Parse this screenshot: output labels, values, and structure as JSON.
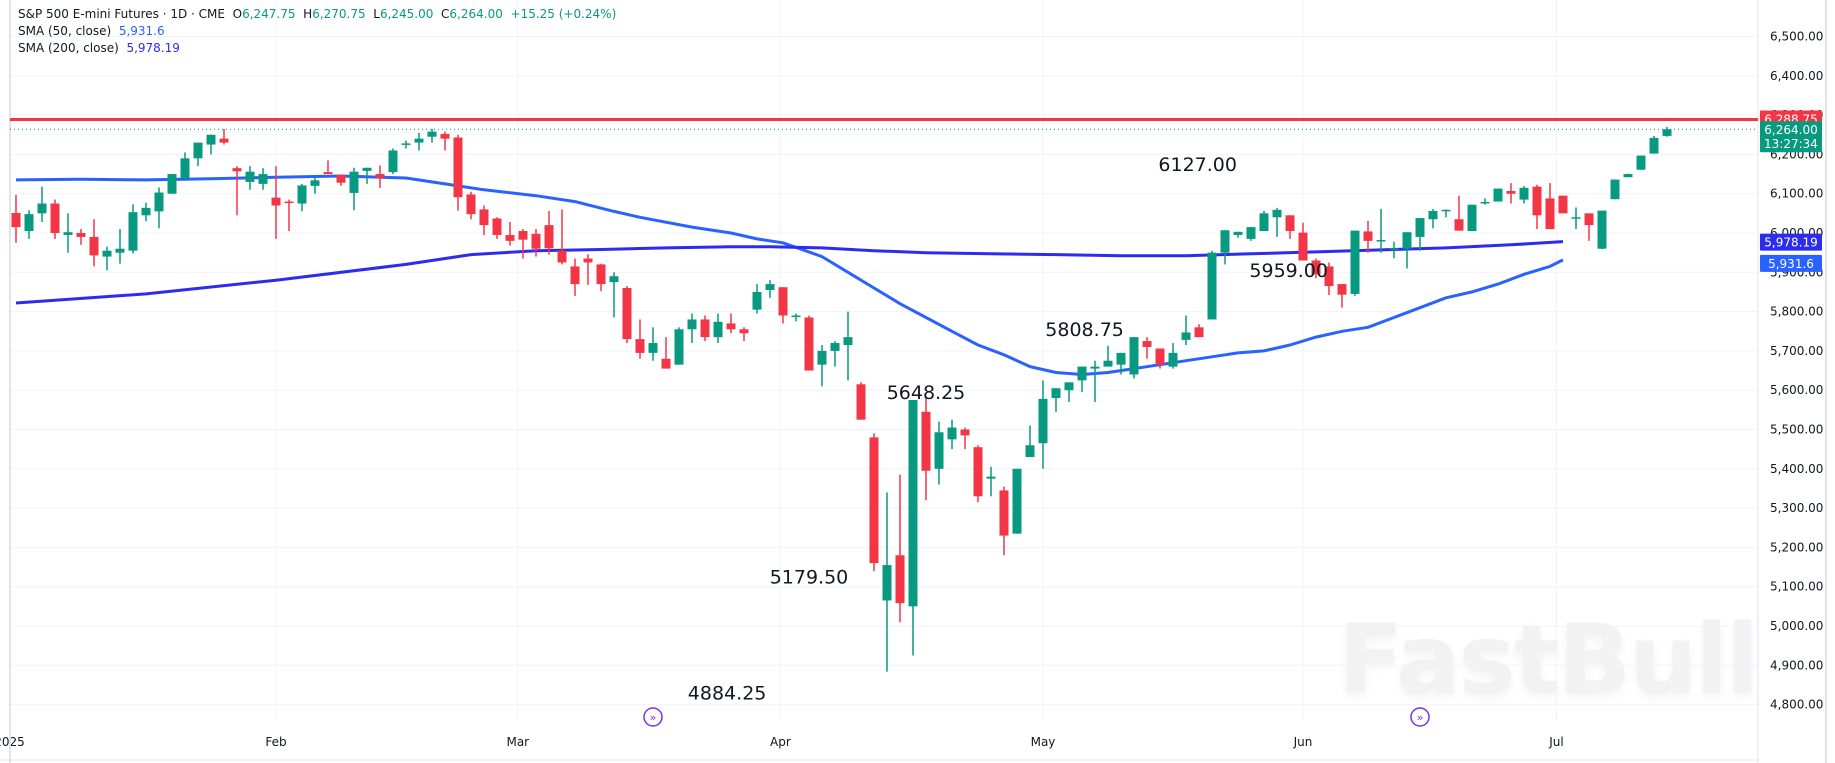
{
  "legend": {
    "symbol": "S&P 500 E-mini Futures · 1D · CME",
    "open_label": "O",
    "open": "6,247.75",
    "high_label": "H",
    "high": "6,270.75",
    "low_label": "L",
    "low": "6,245.00",
    "close_label": "C",
    "close": "6,264.00",
    "change": "+15.25 (+0.24%)",
    "sma50_label": "SMA (50, close)",
    "sma50_value": "5,931.6",
    "sma200_label": "SMA (200, close)",
    "sma200_value": "5,978.19"
  },
  "watermark": "FastBull",
  "colors": {
    "up": "#089981",
    "down": "#f23645",
    "sma50": "#2962ff",
    "sma200": "#2c2cf0",
    "resistance": "#f23645",
    "grid": "#f0f3fa",
    "text": "#131722",
    "event": "#7b2ff7"
  },
  "price_tags": {
    "resistance": "6,288.75",
    "last_price": "6,264.00",
    "countdown": "13:27:34",
    "sma200": "5,978.19",
    "sma50": "5,931.6"
  },
  "chart_data": {
    "type": "candlestick",
    "title": "S&P 500 E-mini Futures · 1D · CME",
    "xlabel": "",
    "ylabel": "",
    "ylim": [
      4750,
      6560
    ],
    "grid": true,
    "y_ticks": [
      "6,500.00",
      "6,400.00",
      "6,300.00",
      "6,200.00",
      "6,100.00",
      "6,000.00",
      "5,900.00",
      "5,800.00",
      "5,700.00",
      "5,600.00",
      "5,500.00",
      "5,400.00",
      "5,300.00",
      "5,200.00",
      "5,100.00",
      "5,000.00",
      "4,900.00",
      "4,800.00"
    ],
    "y_tick_values": [
      6500,
      6400,
      6300,
      6200,
      6100,
      6000,
      5900,
      5800,
      5700,
      5600,
      5500,
      5400,
      5300,
      5200,
      5100,
      5000,
      4900,
      4800
    ],
    "x_ticks": [
      {
        "label": "2025",
        "index": -0.5
      },
      {
        "label": "Feb",
        "index": 20
      },
      {
        "label": "Mar",
        "index": 38.6
      },
      {
        "label": "Apr",
        "index": 58.8
      },
      {
        "label": "May",
        "index": 79
      },
      {
        "label": "Jun",
        "index": 99
      },
      {
        "label": "Jul",
        "index": 118.5
      }
    ],
    "horizontal_lines": [
      {
        "name": "resistance",
        "value": 6288.75
      }
    ],
    "annotations": [
      {
        "text": "4884.25",
        "index": 54.7,
        "value": 4884.25,
        "pos": "below"
      },
      {
        "text": "5179.50",
        "index": 61,
        "value": 5179.5,
        "pos": "below"
      },
      {
        "text": "5648.25",
        "index": 70,
        "value": 5648.25,
        "pos": "below"
      },
      {
        "text": "5808.75",
        "index": 82.2,
        "value": 5808.75,
        "pos": "below"
      },
      {
        "text": "6127.00",
        "index": 90.9,
        "value": 6127.0,
        "pos": "above"
      },
      {
        "text": "5959.00",
        "index": 97.9,
        "value": 5959.0,
        "pos": "below"
      }
    ],
    "events": [
      {
        "index": 49
      },
      {
        "index": 108
      }
    ],
    "series": [
      {
        "name": "SMA (50, close)",
        "type": "line",
        "points": [
          [
            0,
            6135
          ],
          [
            5,
            6137
          ],
          [
            10,
            6135
          ],
          [
            15,
            6138
          ],
          [
            20,
            6142
          ],
          [
            25,
            6145
          ],
          [
            30,
            6140
          ],
          [
            33,
            6125
          ],
          [
            36,
            6110
          ],
          [
            40,
            6095
          ],
          [
            43,
            6080
          ],
          [
            46,
            6055
          ],
          [
            48,
            6040
          ],
          [
            52,
            6015
          ],
          [
            55,
            6000
          ],
          [
            57,
            5985
          ],
          [
            59,
            5975
          ],
          [
            62,
            5940
          ],
          [
            64,
            5900
          ],
          [
            66,
            5860
          ],
          [
            68,
            5820
          ],
          [
            70,
            5785
          ],
          [
            72,
            5750
          ],
          [
            74,
            5715
          ],
          [
            76,
            5690
          ],
          [
            78,
            5660
          ],
          [
            80,
            5645
          ],
          [
            82,
            5640
          ],
          [
            84,
            5645
          ],
          [
            86,
            5655
          ],
          [
            88,
            5665
          ],
          [
            90,
            5675
          ],
          [
            92,
            5685
          ],
          [
            94,
            5695
          ],
          [
            96,
            5700
          ],
          [
            98,
            5715
          ],
          [
            100,
            5735
          ],
          [
            102,
            5750
          ],
          [
            104,
            5760
          ],
          [
            106,
            5785
          ],
          [
            108,
            5810
          ],
          [
            110,
            5835
          ],
          [
            112,
            5850
          ],
          [
            114,
            5870
          ],
          [
            116,
            5895
          ],
          [
            118,
            5915
          ],
          [
            119,
            5931.6
          ]
        ]
      },
      {
        "name": "SMA (200, close)",
        "type": "line",
        "points": [
          [
            0,
            5822
          ],
          [
            10,
            5845
          ],
          [
            20,
            5880
          ],
          [
            30,
            5920
          ],
          [
            35,
            5945
          ],
          [
            40,
            5955
          ],
          [
            45,
            5958
          ],
          [
            50,
            5962
          ],
          [
            55,
            5965
          ],
          [
            58,
            5965
          ],
          [
            62,
            5962
          ],
          [
            66,
            5955
          ],
          [
            70,
            5950
          ],
          [
            75,
            5947
          ],
          [
            80,
            5945
          ],
          [
            85,
            5942
          ],
          [
            90,
            5942
          ],
          [
            95,
            5947
          ],
          [
            100,
            5952
          ],
          [
            105,
            5957
          ],
          [
            110,
            5962
          ],
          [
            115,
            5970
          ],
          [
            119,
            5978.19
          ]
        ]
      }
    ],
    "candles": [
      [
        6051,
        6097,
        5975,
        6015
      ],
      [
        6005,
        6058,
        5985,
        6048
      ],
      [
        6050,
        6118,
        6028,
        6075
      ],
      [
        6075,
        6085,
        5985,
        6000
      ],
      [
        5995,
        6050,
        5950,
        6002
      ],
      [
        6000,
        6010,
        5970,
        5990
      ],
      [
        5990,
        6035,
        5915,
        5943
      ],
      [
        5940,
        5965,
        5905,
        5955
      ],
      [
        5950,
        6010,
        5922,
        5960
      ],
      [
        5955,
        6073,
        5948,
        6053
      ],
      [
        6045,
        6077,
        6030,
        6064
      ],
      [
        6055,
        6116,
        6012,
        6103
      ],
      [
        6100,
        6145,
        6130,
        6150
      ],
      [
        6140,
        6205,
        6133,
        6190
      ],
      [
        6190,
        6215,
        6170,
        6230
      ],
      [
        6225,
        6240,
        6200,
        6250
      ],
      [
        6240,
        6265,
        6225,
        6230
      ],
      [
        6165,
        6170,
        6045,
        6157
      ],
      [
        6130,
        6170,
        6110,
        6156
      ],
      [
        6125,
        6165,
        6110,
        6150
      ],
      [
        6090,
        6170,
        5985,
        6070
      ],
      [
        6080,
        6085,
        6005,
        6077
      ],
      [
        6075,
        6125,
        6055,
        6121
      ],
      [
        6120,
        6145,
        6100,
        6134
      ],
      [
        6155,
        6185,
        6155,
        6150
      ],
      [
        6148,
        6140,
        6120,
        6128
      ],
      [
        6102,
        6166,
        6058,
        6156
      ],
      [
        6158,
        6165,
        6125,
        6166
      ],
      [
        6150,
        6172,
        6115,
        6140
      ],
      [
        6155,
        6215,
        6150,
        6210
      ],
      [
        6225,
        6235,
        6215,
        6228
      ],
      [
        6230,
        6255,
        6210,
        6240
      ],
      [
        6245,
        6265,
        6230,
        6258
      ],
      [
        6252,
        6258,
        6210,
        6240
      ],
      [
        6243,
        6250,
        6057,
        6091
      ],
      [
        6098,
        6105,
        6035,
        6048
      ],
      [
        6060,
        6070,
        5995,
        6020
      ],
      [
        6037,
        6040,
        5985,
        5995
      ],
      [
        5995,
        6028,
        5968,
        5980
      ],
      [
        6005,
        6010,
        5935,
        5983
      ],
      [
        5998,
        6010,
        5940,
        5960
      ],
      [
        6020,
        6056,
        5945,
        5961
      ],
      [
        5955,
        6060,
        5920,
        5925
      ],
      [
        5915,
        5935,
        5840,
        5870
      ],
      [
        5935,
        5946,
        5868,
        5925
      ],
      [
        5920,
        5922,
        5852,
        5870
      ],
      [
        5875,
        5900,
        5785,
        5890
      ],
      [
        5860,
        5865,
        5720,
        5730
      ],
      [
        5730,
        5780,
        5680,
        5695
      ],
      [
        5695,
        5760,
        5675,
        5720
      ],
      [
        5680,
        5735,
        5660,
        5655
      ],
      [
        5665,
        5760,
        5670,
        5755
      ],
      [
        5755,
        5795,
        5720,
        5780
      ],
      [
        5780,
        5790,
        5725,
        5735
      ],
      [
        5735,
        5795,
        5720,
        5774
      ],
      [
        5770,
        5795,
        5745,
        5755
      ],
      [
        5755,
        5760,
        5725,
        5745
      ],
      [
        5805,
        5870,
        5795,
        5850
      ],
      [
        5855,
        5880,
        5835,
        5870
      ],
      [
        5862,
        5855,
        5770,
        5790
      ],
      [
        5790,
        5795,
        5775,
        5790
      ],
      [
        5785,
        5790,
        5650,
        5650
      ],
      [
        5665,
        5715,
        5610,
        5700
      ],
      [
        5700,
        5725,
        5660,
        5720
      ],
      [
        5715,
        5800,
        5625,
        5735
      ],
      [
        5615,
        5620,
        5545,
        5525
      ],
      [
        5480,
        5490,
        5140,
        5160
      ],
      [
        5065,
        5340,
        4884,
        5155
      ],
      [
        5180,
        5385,
        5010,
        5058
      ],
      [
        5050,
        5575,
        4925,
        5575
      ],
      [
        5545,
        5580,
        5320,
        5395
      ],
      [
        5400,
        5520,
        5360,
        5493
      ],
      [
        5475,
        5525,
        5450,
        5505
      ],
      [
        5500,
        5505,
        5450,
        5485
      ],
      [
        5455,
        5460,
        5315,
        5330
      ],
      [
        5375,
        5405,
        5330,
        5380
      ],
      [
        5345,
        5355,
        5180,
        5230
      ],
      [
        5235,
        5390,
        5240,
        5400
      ],
      [
        5430,
        5510,
        5430,
        5460
      ],
      [
        5465,
        5625,
        5400,
        5578
      ],
      [
        5580,
        5593,
        5545,
        5605
      ],
      [
        5600,
        5615,
        5570,
        5620
      ],
      [
        5625,
        5645,
        5595,
        5660
      ],
      [
        5655,
        5675,
        5570,
        5660
      ],
      [
        5660,
        5713,
        5660,
        5675
      ],
      [
        5665,
        5695,
        5640,
        5695
      ],
      [
        5640,
        5725,
        5630,
        5735
      ],
      [
        5725,
        5735,
        5680,
        5710
      ],
      [
        5706,
        5697,
        5655,
        5665
      ],
      [
        5660,
        5720,
        5655,
        5695
      ],
      [
        5728,
        5790,
        5715,
        5747
      ],
      [
        5760,
        5768,
        5740,
        5735
      ],
      [
        5780,
        5955,
        5895,
        5950
      ],
      [
        5950,
        5996,
        5920,
        6007
      ],
      [
        5995,
        6003,
        5988,
        6003
      ],
      [
        5985,
        6010,
        5980,
        6015
      ],
      [
        6005,
        6056,
        6030,
        6050
      ],
      [
        6040,
        6064,
        5990,
        6059
      ],
      [
        6045,
        6035,
        5985,
        6005
      ],
      [
        6001,
        6026,
        5930,
        5930
      ],
      [
        5930,
        5935,
        5885,
        5895
      ],
      [
        5915,
        5925,
        5842,
        5865
      ],
      [
        5870,
        5870,
        5810,
        5843
      ],
      [
        5845,
        6006,
        5840,
        6006
      ],
      [
        6004,
        6031,
        5950,
        5980
      ],
      [
        5980,
        6061,
        5950,
        5982
      ],
      [
        5960,
        5978,
        5936,
        5961
      ],
      [
        5960,
        5990,
        5910,
        6002
      ],
      [
        5990,
        6003,
        5955,
        6038
      ],
      [
        6035,
        6061,
        6012,
        6056
      ],
      [
        6058,
        6060,
        6040,
        6059
      ],
      [
        6035,
        6095,
        6013,
        6006
      ],
      [
        6005,
        6072,
        6011,
        6072
      ],
      [
        6079,
        6088,
        6072,
        6079
      ],
      [
        6080,
        6100,
        6095,
        6113
      ],
      [
        6107,
        6127,
        6075,
        6100
      ],
      [
        6085,
        6120,
        6075,
        6115
      ],
      [
        6118,
        6123,
        6010,
        6045
      ],
      [
        6088,
        6127,
        6010,
        6010
      ],
      [
        6095,
        6085,
        6060,
        6050
      ],
      [
        6040,
        6065,
        6010,
        6040
      ],
      [
        6050,
        6045,
        5980,
        6020
      ],
      [
        5960,
        6050,
        5959,
        6057
      ],
      [
        6086,
        6113,
        6140,
        6136
      ],
      [
        6142,
        6151,
        6150,
        6150
      ],
      [
        6161,
        6172,
        6195,
        6197
      ],
      [
        6202,
        6247,
        6236,
        6242
      ],
      [
        6247,
        6270,
        6245,
        6264
      ]
    ]
  }
}
